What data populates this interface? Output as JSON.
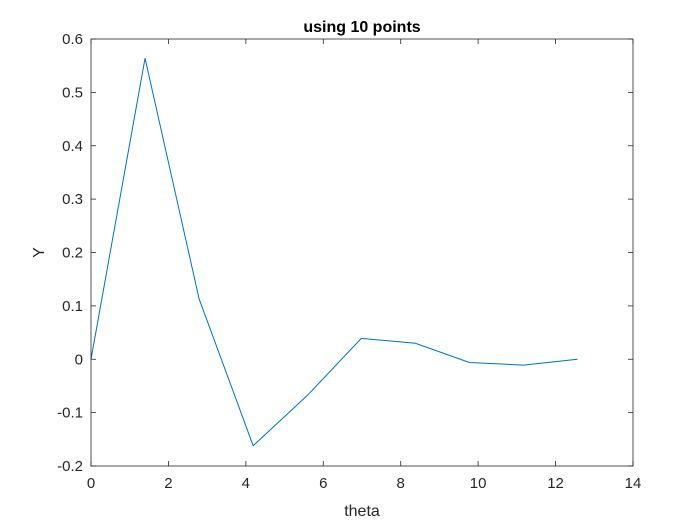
{
  "chart_data": {
    "type": "line",
    "title": "using 10 points",
    "xlabel": "theta",
    "ylabel": "Y",
    "xlim": [
      0,
      14
    ],
    "ylim": [
      -0.2,
      0.6
    ],
    "xticks": [
      0,
      2,
      4,
      6,
      8,
      10,
      12,
      14
    ],
    "xtick_labels": [
      "0",
      "2",
      "4",
      "6",
      "8",
      "10",
      "12",
      "14"
    ],
    "yticks": [
      -0.2,
      -0.1,
      0,
      0.1,
      0.2,
      0.3,
      0.4,
      0.5,
      0.6
    ],
    "ytick_labels": [
      "-0.2",
      "-0.1",
      "0",
      "0.1",
      "0.2",
      "0.3",
      "0.4",
      "0.5",
      "0.6"
    ],
    "grid": false,
    "series": [
      {
        "color": "#0072BD",
        "x": [
          0,
          1.396,
          2.793,
          4.189,
          5.585,
          6.981,
          8.378,
          9.774,
          11.17,
          12.566
        ],
        "y": [
          0,
          0.564,
          0.113,
          -0.162,
          -0.068,
          0.039,
          0.03,
          -0.006,
          -0.011,
          0
        ]
      }
    ]
  }
}
